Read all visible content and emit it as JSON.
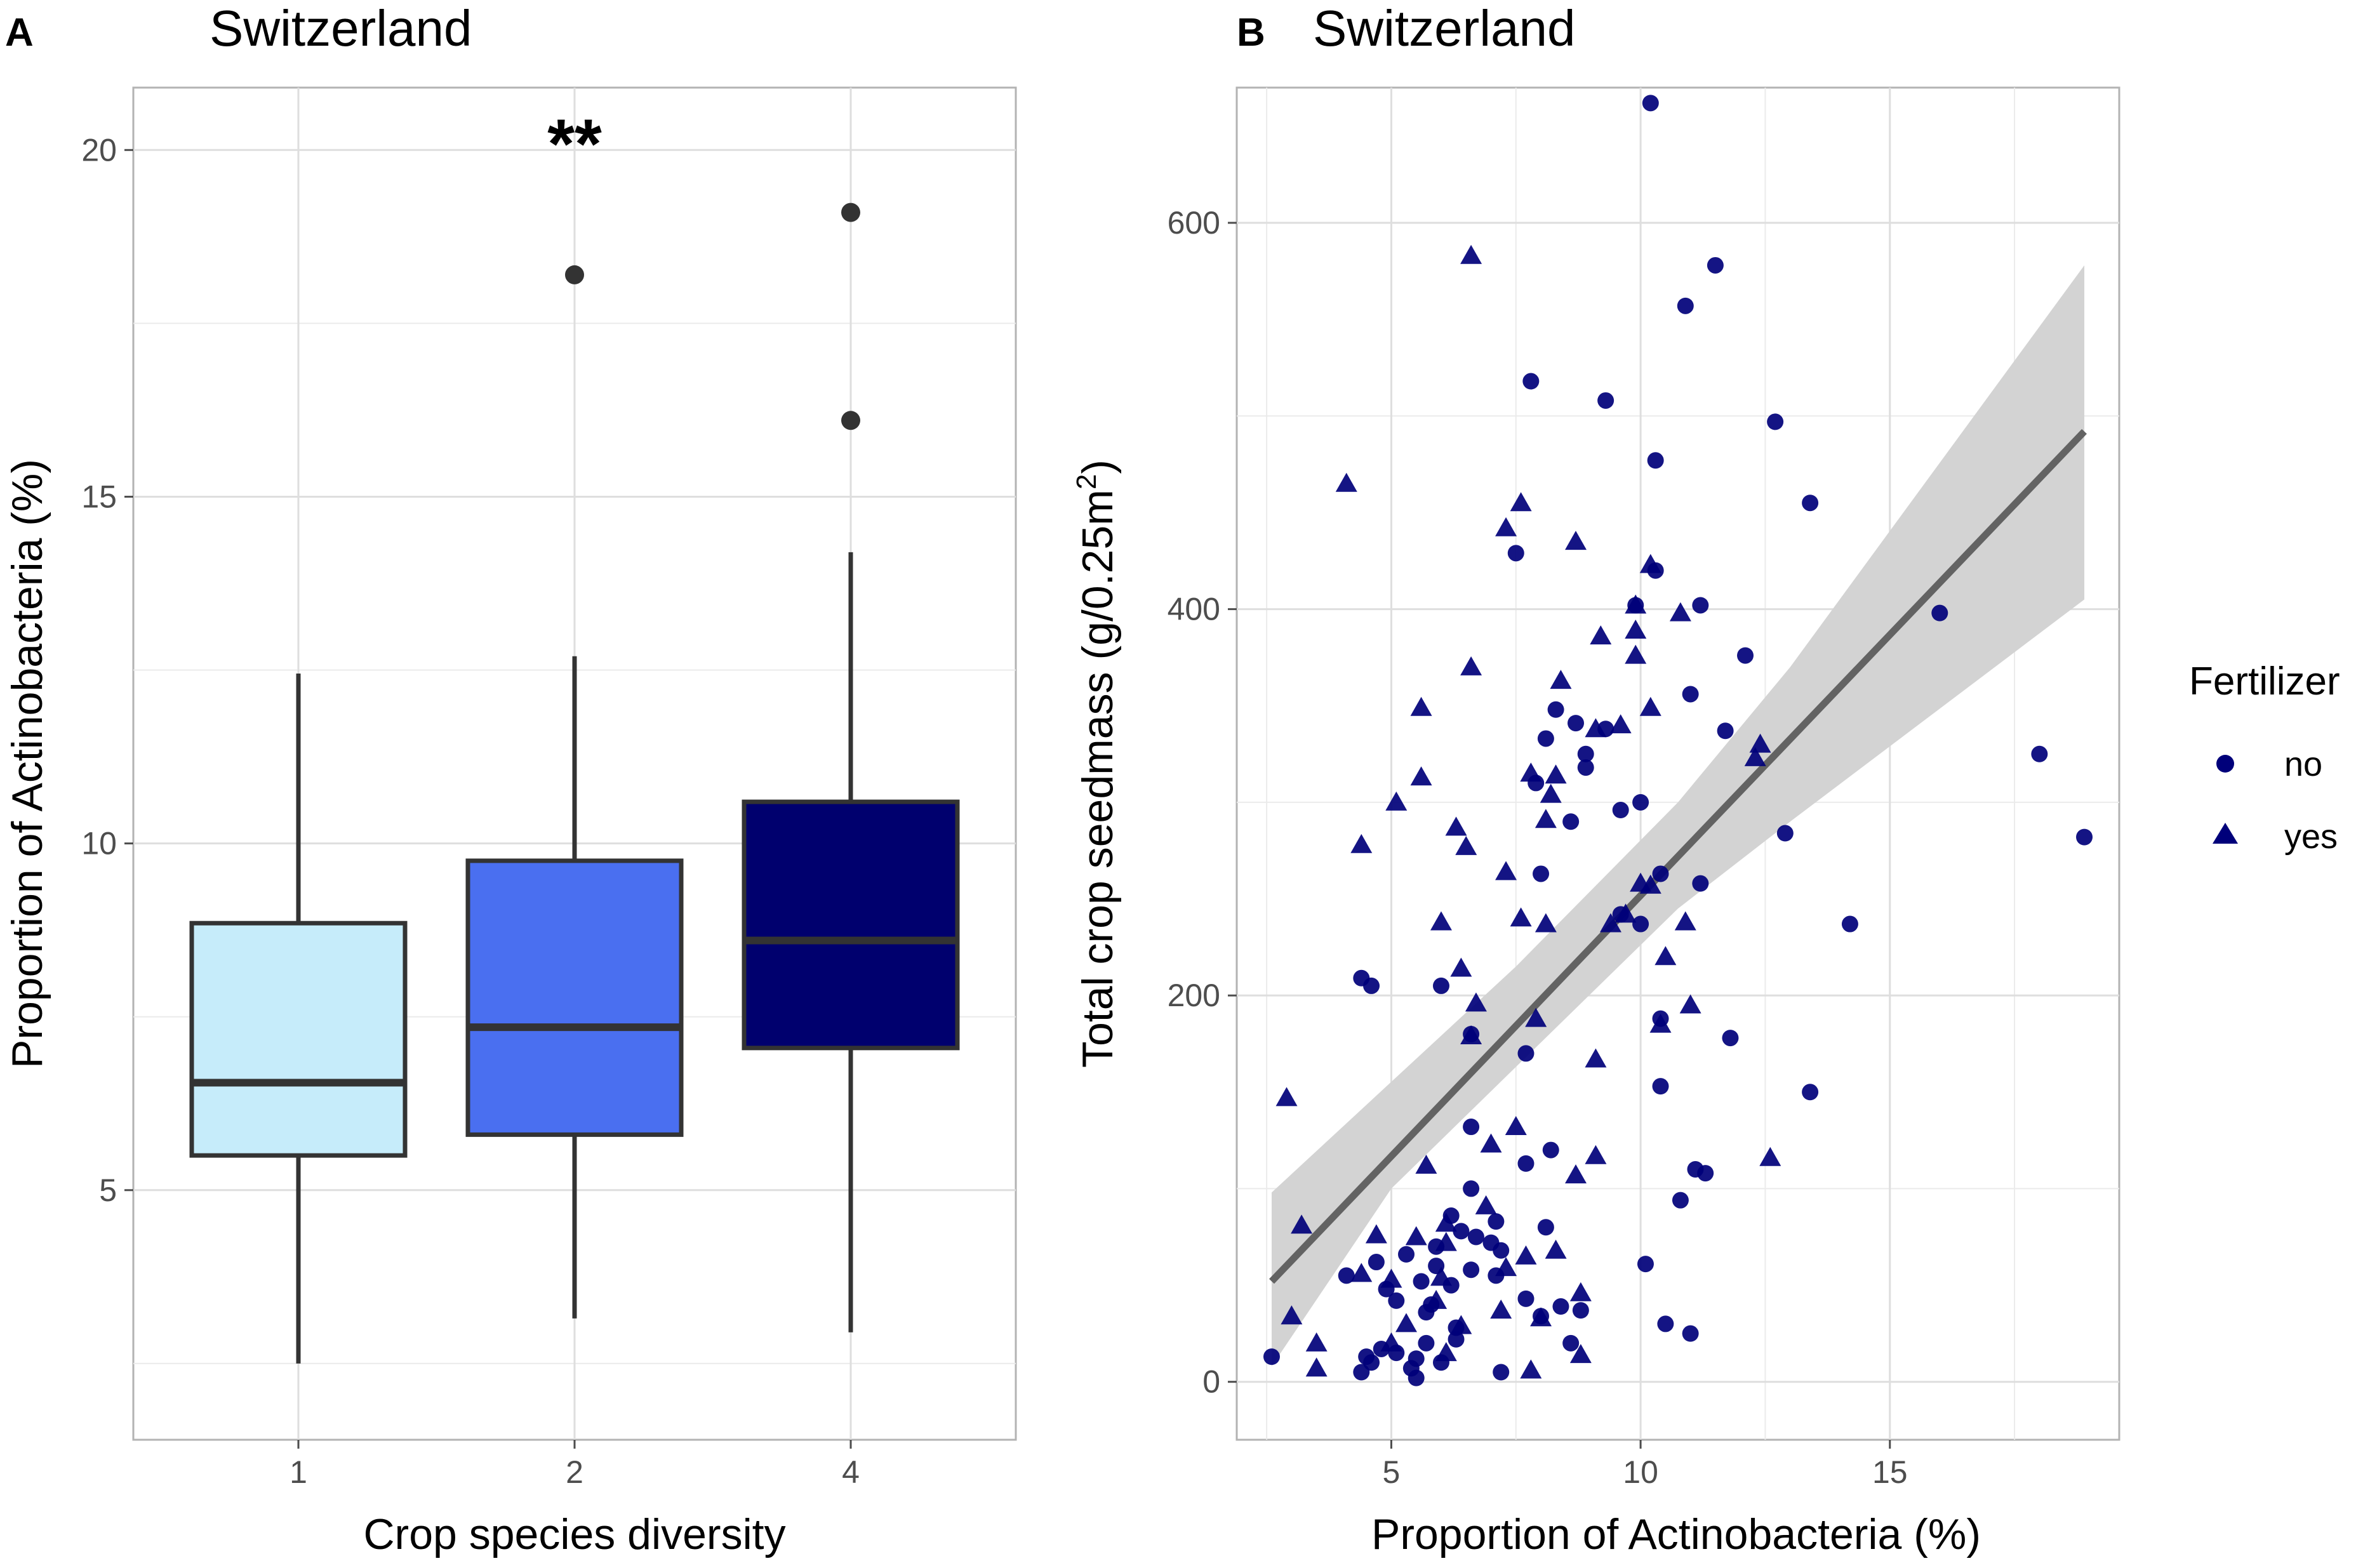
{
  "chart_data": [
    {
      "panel": "A",
      "type": "box",
      "title": "Switzerland",
      "xlabel": "Crop species diversity",
      "ylabel": "Proportion of Actinobacteria (%)",
      "categories": [
        "1",
        "2",
        "4"
      ],
      "ylim": [
        1.4,
        20.9
      ],
      "yticks": [
        5,
        10,
        15,
        20
      ],
      "boxes": [
        {
          "category": "1",
          "fill": "#c6ecfa",
          "q1": 5.5,
          "median": 6.55,
          "q3": 8.85,
          "whisker_low": 2.5,
          "whisker_high": 12.45,
          "outliers": []
        },
        {
          "category": "2",
          "fill": "#4a6ff0",
          "q1": 5.8,
          "median": 7.35,
          "q3": 9.75,
          "whisker_low": 3.15,
          "whisker_high": 12.7,
          "outliers": [
            18.2
          ]
        },
        {
          "category": "4",
          "fill": "#00006e",
          "q1": 7.05,
          "median": 8.6,
          "q3": 10.6,
          "whisker_low": 2.95,
          "whisker_high": 14.2,
          "outliers": [
            16.1,
            19.1
          ]
        }
      ],
      "annotations": [
        {
          "category": "2",
          "text": "**",
          "y": 20.2
        }
      ]
    },
    {
      "panel": "B",
      "type": "scatter",
      "title": "Switzerland",
      "xlabel": "Proportion of Actinobacteria (%)",
      "ylabel": "Total crop seedmass (g/0.25m",
      "ylabel_sup": "2",
      "ylabel_end": ")",
      "xlim": [
        1.9,
        19.6
      ],
      "ylim": [
        -30,
        670
      ],
      "xticks": [
        5,
        10,
        15
      ],
      "yticks": [
        0,
        200,
        400,
        600
      ],
      "legend": {
        "title": "Fertilizer",
        "position": "right",
        "items": [
          "no",
          "yes"
        ]
      },
      "point_color": "#00007a",
      "series": [
        {
          "name": "no",
          "marker": "circle",
          "points": [
            [
              10.2,
              662
            ],
            [
              11.5,
              578
            ],
            [
              10.9,
              557
            ],
            [
              7.8,
              518
            ],
            [
              9.3,
              508
            ],
            [
              12.7,
              497
            ],
            [
              10.3,
              477
            ],
            [
              13.4,
              455
            ],
            [
              7.5,
              429
            ],
            [
              10.3,
              420
            ],
            [
              9.9,
              402
            ],
            [
              11.2,
              402
            ],
            [
              12.1,
              376
            ],
            [
              11.0,
              356
            ],
            [
              8.3,
              348
            ],
            [
              8.7,
              341
            ],
            [
              9.3,
              338
            ],
            [
              11.7,
              337
            ],
            [
              8.1,
              333
            ],
            [
              8.9,
              325
            ],
            [
              8.9,
              318
            ],
            [
              7.9,
              310
            ],
            [
              10.0,
              300
            ],
            [
              9.6,
              296
            ],
            [
              8.6,
              290
            ],
            [
              12.9,
              284
            ],
            [
              8.0,
              263
            ],
            [
              10.4,
              263
            ],
            [
              11.2,
              258
            ],
            [
              9.6,
              242
            ],
            [
              10.0,
              237
            ],
            [
              14.2,
              237
            ],
            [
              16.0,
              398
            ],
            [
              18.0,
              325
            ],
            [
              18.9,
              282
            ],
            [
              4.4,
              209
            ],
            [
              4.6,
              205
            ],
            [
              6.0,
              205
            ],
            [
              6.6,
              180
            ],
            [
              10.4,
              188
            ],
            [
              11.8,
              178
            ],
            [
              7.7,
              170
            ],
            [
              10.4,
              153
            ],
            [
              13.4,
              150
            ],
            [
              6.6,
              132
            ],
            [
              8.2,
              120
            ],
            [
              7.7,
              113
            ],
            [
              11.1,
              110
            ],
            [
              11.3,
              108
            ],
            [
              6.6,
              100
            ],
            [
              10.8,
              94
            ],
            [
              6.2,
              86
            ],
            [
              7.1,
              83
            ],
            [
              6.4,
              78
            ],
            [
              8.1,
              80
            ],
            [
              6.7,
              75
            ],
            [
              7.0,
              72
            ],
            [
              5.9,
              70
            ],
            [
              7.2,
              68
            ],
            [
              5.3,
              66
            ],
            [
              5.9,
              60
            ],
            [
              4.7,
              62
            ],
            [
              6.6,
              58
            ],
            [
              7.1,
              55
            ],
            [
              4.1,
              55
            ],
            [
              5.6,
              52
            ],
            [
              6.2,
              50
            ],
            [
              4.9,
              48
            ],
            [
              5.8,
              40
            ],
            [
              5.1,
              42
            ],
            [
              7.7,
              43
            ],
            [
              8.4,
              39
            ],
            [
              5.7,
              36
            ],
            [
              8.0,
              34
            ],
            [
              8.8,
              37
            ],
            [
              11.0,
              25
            ],
            [
              10.5,
              30
            ],
            [
              6.3,
              28
            ],
            [
              6.3,
              22
            ],
            [
              5.7,
              20
            ],
            [
              8.6,
              20
            ],
            [
              4.8,
              17
            ],
            [
              5.1,
              15
            ],
            [
              4.5,
              13
            ],
            [
              5.5,
              12
            ],
            [
              6.0,
              10
            ],
            [
              4.6,
              10
            ],
            [
              2.6,
              13
            ],
            [
              5.4,
              7
            ],
            [
              7.2,
              5
            ],
            [
              4.4,
              5
            ],
            [
              5.5,
              2
            ],
            [
              10.1,
              61
            ]
          ]
        },
        {
          "name": "yes",
          "marker": "triangle",
          "points": [
            [
              6.6,
              583
            ],
            [
              4.1,
              465
            ],
            [
              7.6,
              455
            ],
            [
              7.3,
              442
            ],
            [
              8.7,
              435
            ],
            [
              10.2,
              423
            ],
            [
              10.8,
              398
            ],
            [
              9.9,
              402
            ],
            [
              9.2,
              386
            ],
            [
              9.9,
              389
            ],
            [
              9.9,
              376
            ],
            [
              6.6,
              370
            ],
            [
              8.4,
              363
            ],
            [
              5.6,
              349
            ],
            [
              10.2,
              349
            ],
            [
              9.6,
              340
            ],
            [
              9.1,
              338
            ],
            [
              5.6,
              313
            ],
            [
              12.4,
              330
            ],
            [
              12.3,
              323
            ],
            [
              8.3,
              314
            ],
            [
              7.8,
              315
            ],
            [
              5.1,
              300
            ],
            [
              8.2,
              304
            ],
            [
              6.3,
              287
            ],
            [
              8.1,
              291
            ],
            [
              6.5,
              277
            ],
            [
              4.4,
              278
            ],
            [
              7.3,
              264
            ],
            [
              10.0,
              258
            ],
            [
              10.2,
              257
            ],
            [
              7.6,
              240
            ],
            [
              8.1,
              237
            ],
            [
              10.9,
              238
            ],
            [
              9.4,
              237
            ],
            [
              6.0,
              238
            ],
            [
              9.7,
              242
            ],
            [
              6.4,
              214
            ],
            [
              10.5,
              220
            ],
            [
              6.7,
              196
            ],
            [
              10.4,
              185
            ],
            [
              11.0,
              195
            ],
            [
              7.9,
              188
            ],
            [
              6.6,
              179
            ],
            [
              9.1,
              167
            ],
            [
              2.9,
              147
            ],
            [
              7.5,
              132
            ],
            [
              7.0,
              123
            ],
            [
              5.7,
              112
            ],
            [
              9.1,
              117
            ],
            [
              12.6,
              116
            ],
            [
              8.7,
              107
            ],
            [
              6.9,
              91
            ],
            [
              3.2,
              81
            ],
            [
              6.1,
              82
            ],
            [
              7.7,
              65
            ],
            [
              4.7,
              76
            ],
            [
              5.5,
              75
            ],
            [
              6.1,
              72
            ],
            [
              8.3,
              68
            ],
            [
              7.3,
              59
            ],
            [
              6.0,
              54
            ],
            [
              4.4,
              56
            ],
            [
              5.0,
              53
            ],
            [
              8.8,
              46
            ],
            [
              5.9,
              42
            ],
            [
              7.2,
              37
            ],
            [
              3.0,
              34
            ],
            [
              8.0,
              33
            ],
            [
              5.3,
              30
            ],
            [
              6.4,
              29
            ],
            [
              8.8,
              14
            ],
            [
              3.5,
              20
            ],
            [
              6.1,
              15
            ],
            [
              3.5,
              7
            ],
            [
              7.8,
              6
            ],
            [
              5.0,
              20
            ]
          ]
        }
      ],
      "trend": {
        "x_start": 2.6,
        "y_start": 52,
        "x_end": 18.9,
        "y_end": 492,
        "ci_lower": [
          98,
          8,
          405
        ],
        "ci_upper": [
          98,
          65,
          578
        ],
        "ci_fill": "#d3d3d3",
        "line_color": "#636363"
      }
    }
  ],
  "panels": {
    "a": {
      "letter": "A",
      "title": "Switzerland"
    },
    "b": {
      "letter": "B",
      "title": "Switzerland"
    }
  }
}
